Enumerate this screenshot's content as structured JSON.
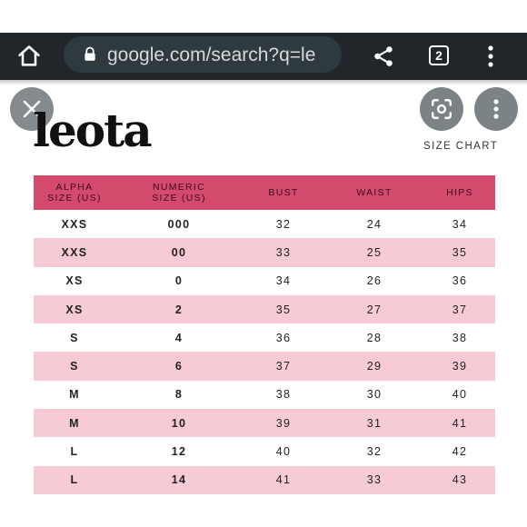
{
  "browser": {
    "url": "google.com/search?q=le",
    "tab_count": "2",
    "toolbar_color": "#20262a"
  },
  "overlay": {
    "close_icon": "close-icon",
    "lens_icon": "lens-icon",
    "more_icon": "more-vert-icon"
  },
  "content": {
    "logo": "leota",
    "chart_title": "SIZE CHART",
    "header_color": "#d44a6d",
    "stripe_color": "#f6cbd5",
    "table": {
      "headers": {
        "alpha_line1": "ALPHA",
        "alpha_line2": "SIZE (US)",
        "numeric_line1": "NUMERIC",
        "numeric_line2": "SIZE (US)",
        "bust": "BUST",
        "waist": "WAIST",
        "hips": "HIPS"
      },
      "rows": [
        {
          "alpha": "XXS",
          "numeric": "000",
          "bust": "32",
          "waist": "24",
          "hips": "34"
        },
        {
          "alpha": "XXS",
          "numeric": "00",
          "bust": "33",
          "waist": "25",
          "hips": "35"
        },
        {
          "alpha": "XS",
          "numeric": "0",
          "bust": "34",
          "waist": "26",
          "hips": "36"
        },
        {
          "alpha": "XS",
          "numeric": "2",
          "bust": "35",
          "waist": "27",
          "hips": "37"
        },
        {
          "alpha": "S",
          "numeric": "4",
          "bust": "36",
          "waist": "28",
          "hips": "38"
        },
        {
          "alpha": "S",
          "numeric": "6",
          "bust": "37",
          "waist": "29",
          "hips": "39"
        },
        {
          "alpha": "M",
          "numeric": "8",
          "bust": "38",
          "waist": "30",
          "hips": "40"
        },
        {
          "alpha": "M",
          "numeric": "10",
          "bust": "39",
          "waist": "31",
          "hips": "41"
        },
        {
          "alpha": "L",
          "numeric": "12",
          "bust": "40",
          "waist": "32",
          "hips": "42"
        },
        {
          "alpha": "L",
          "numeric": "14",
          "bust": "41",
          "waist": "33",
          "hips": "43"
        }
      ]
    }
  }
}
